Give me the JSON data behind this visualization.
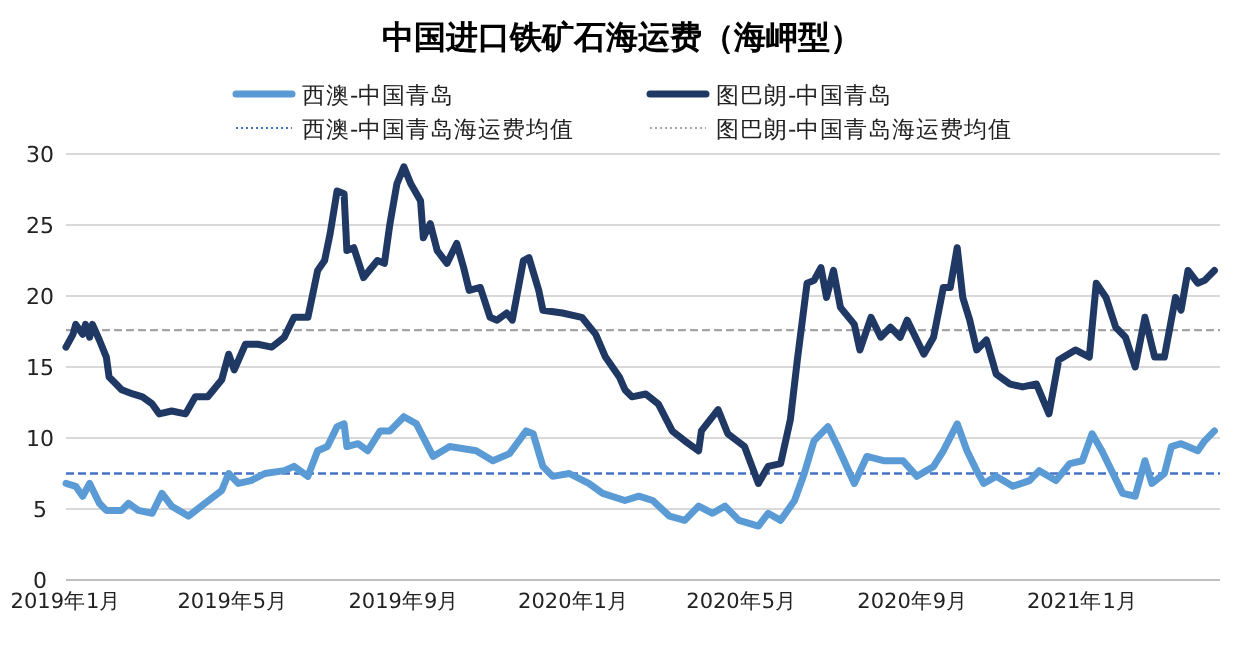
{
  "chart_data": {
    "type": "line",
    "title": "中国进口铁矿石海运费（海岬型）",
    "legend": "top",
    "grid": "y",
    "line_style": "solid",
    "marker": "none",
    "xlim": [
      "2019-01-01",
      "2021-04-10"
    ],
    "xticks": [
      {
        "value": "2019-01-01",
        "label": "2019年1月"
      },
      {
        "value": "2019-05-01",
        "label": "2019年5月"
      },
      {
        "value": "2019-09-01",
        "label": "2019年9月"
      },
      {
        "value": "2020-01-01",
        "label": "2020年1月"
      },
      {
        "value": "2020-05-01",
        "label": "2020年5月"
      },
      {
        "value": "2020-09-01",
        "label": "2020年9月"
      },
      {
        "value": "2021-01-01",
        "label": "2021年1月"
      }
    ],
    "ylim": [
      0,
      30
    ],
    "yticks": [
      0,
      5,
      10,
      15,
      20,
      25,
      30
    ],
    "series": [
      {
        "name": "西澳-中国青岛",
        "color": "#5b9bd5",
        "x": [
          "2019-01-01",
          "2019-01-08",
          "2019-01-13",
          "2019-01-18",
          "2019-01-25",
          "2019-01-30",
          "2019-02-10",
          "2019-02-15",
          "2019-02-22",
          "2019-03-04",
          "2019-03-11",
          "2019-03-18",
          "2019-03-30",
          "2019-04-11",
          "2019-04-23",
          "2019-04-28",
          "2019-05-05",
          "2019-05-14",
          "2019-05-24",
          "2019-06-07",
          "2019-06-14",
          "2019-06-24",
          "2019-07-01",
          "2019-07-08",
          "2019-07-15",
          "2019-07-20",
          "2019-07-22",
          "2019-07-30",
          "2019-08-06",
          "2019-08-15",
          "2019-08-22",
          "2019-09-01",
          "2019-09-10",
          "2019-09-22",
          "2019-10-04",
          "2019-10-23",
          "2019-11-04",
          "2019-11-16",
          "2019-11-28",
          "2019-12-03",
          "2019-12-10",
          "2019-12-17",
          "2019-12-29",
          "2020-01-12",
          "2020-01-22",
          "2020-02-07",
          "2020-02-17",
          "2020-02-27",
          "2020-03-10",
          "2020-03-21",
          "2020-03-31",
          "2020-04-10",
          "2020-04-19",
          "2020-04-29",
          "2020-05-13",
          "2020-05-20",
          "2020-05-29",
          "2020-06-08",
          "2020-06-15",
          "2020-06-22",
          "2020-07-02",
          "2020-07-09",
          "2020-07-21",
          "2020-07-30",
          "2020-08-11",
          "2020-08-25",
          "2020-09-04",
          "2020-09-16",
          "2020-09-23",
          "2020-10-03",
          "2020-10-10",
          "2020-10-17",
          "2020-10-22",
          "2020-10-31",
          "2020-11-12",
          "2020-11-24",
          "2020-12-01",
          "2020-12-13",
          "2020-12-23",
          "2021-01-01",
          "2021-01-08",
          "2021-01-15",
          "2021-01-22",
          "2021-01-30",
          "2021-02-08",
          "2021-02-15",
          "2021-02-20",
          "2021-03-01",
          "2021-03-06",
          "2021-03-13",
          "2021-03-25",
          "2021-03-30",
          "2021-04-06"
        ],
        "values": [
          6.8,
          6.6,
          5.9,
          6.8,
          5.4,
          4.9,
          4.9,
          5.4,
          4.9,
          4.7,
          6.1,
          5.2,
          4.5,
          5.4,
          6.3,
          7.5,
          6.8,
          7.0,
          7.5,
          7.7,
          8.0,
          7.3,
          9.1,
          9.4,
          10.8,
          11.0,
          9.4,
          9.6,
          9.1,
          10.5,
          10.5,
          11.5,
          11.0,
          8.7,
          9.4,
          9.1,
          8.4,
          8.9,
          10.5,
          10.3,
          8.0,
          7.3,
          7.5,
          6.8,
          6.1,
          5.6,
          5.9,
          5.6,
          4.5,
          4.2,
          5.2,
          4.7,
          5.2,
          4.2,
          3.8,
          4.7,
          4.2,
          5.6,
          7.5,
          9.8,
          10.8,
          9.4,
          6.8,
          8.7,
          8.4,
          8.4,
          7.3,
          8.0,
          9.1,
          11.0,
          9.1,
          7.7,
          6.8,
          7.3,
          6.6,
          7.0,
          7.7,
          7.0,
          8.2,
          8.4,
          10.3,
          9.1,
          7.7,
          6.1,
          5.9,
          8.4,
          6.8,
          7.5,
          9.4,
          9.6,
          9.1,
          9.8,
          10.5
        ]
      },
      {
        "name": "图巴朗-中国青岛",
        "color": "#203864",
        "x": [
          "2019-01-01",
          "2019-01-06",
          "2019-01-08",
          "2019-01-13",
          "2019-01-15",
          "2019-01-18",
          "2019-01-20",
          "2019-01-25",
          "2019-01-30",
          "2019-02-01",
          "2019-02-06",
          "2019-02-10",
          "2019-02-18",
          "2019-02-25",
          "2019-03-04",
          "2019-03-09",
          "2019-03-18",
          "2019-03-28",
          "2019-04-04",
          "2019-04-13",
          "2019-04-23",
          "2019-04-28",
          "2019-05-02",
          "2019-05-10",
          "2019-05-19",
          "2019-05-29",
          "2019-06-07",
          "2019-06-14",
          "2019-06-24",
          "2019-07-01",
          "2019-07-06",
          "2019-07-10",
          "2019-07-15",
          "2019-07-20",
          "2019-07-22",
          "2019-07-27",
          "2019-08-03",
          "2019-08-13",
          "2019-08-18",
          "2019-08-22",
          "2019-08-27",
          "2019-09-01",
          "2019-09-06",
          "2019-09-13",
          "2019-09-15",
          "2019-09-20",
          "2019-09-25",
          "2019-10-02",
          "2019-10-09",
          "2019-10-14",
          "2019-10-18",
          "2019-10-26",
          "2019-11-02",
          "2019-11-07",
          "2019-11-14",
          "2019-11-18",
          "2019-11-26",
          "2019-11-30",
          "2019-12-07",
          "2019-12-10",
          "2019-12-24",
          "2020-01-07",
          "2020-01-17",
          "2020-01-24",
          "2020-02-03",
          "2020-02-07",
          "2020-02-12",
          "2020-02-22",
          "2020-03-02",
          "2020-03-12",
          "2020-03-21",
          "2020-03-31",
          "2020-04-02",
          "2020-04-14",
          "2020-04-21",
          "2020-05-03",
          "2020-05-13",
          "2020-05-20",
          "2020-05-29",
          "2020-06-05",
          "2020-06-10",
          "2020-06-17",
          "2020-06-22",
          "2020-06-27",
          "2020-07-01",
          "2020-07-06",
          "2020-07-11",
          "2020-07-21",
          "2020-07-25",
          "2020-08-02",
          "2020-08-09",
          "2020-08-16",
          "2020-08-23",
          "2020-08-28",
          "2020-09-09",
          "2020-09-16",
          "2020-09-23",
          "2020-09-28",
          "2020-10-03",
          "2020-10-07",
          "2020-10-12",
          "2020-10-17",
          "2020-10-24",
          "2020-10-31",
          "2020-11-10",
          "2020-11-19",
          "2020-11-29",
          "2020-12-08",
          "2020-12-15",
          "2020-12-27",
          "2021-01-06",
          "2021-01-11",
          "2021-01-18",
          "2021-01-25",
          "2021-02-01",
          "2021-02-08",
          "2021-02-15",
          "2021-02-22",
          "2021-03-01",
          "2021-03-09",
          "2021-03-13",
          "2021-03-18",
          "2021-03-25",
          "2021-03-30",
          "2021-04-06"
        ],
        "values": [
          16.4,
          17.3,
          18.0,
          17.3,
          18.0,
          17.1,
          18.0,
          16.9,
          15.7,
          14.3,
          13.8,
          13.4,
          13.1,
          12.9,
          12.4,
          11.7,
          11.9,
          11.7,
          12.9,
          12.9,
          14.1,
          15.9,
          14.8,
          16.6,
          16.6,
          16.4,
          17.1,
          18.5,
          18.5,
          21.8,
          22.5,
          24.4,
          27.4,
          27.2,
          23.2,
          23.4,
          21.3,
          22.5,
          22.3,
          25.1,
          27.9,
          29.1,
          27.9,
          26.7,
          24.1,
          25.1,
          23.2,
          22.3,
          23.7,
          22.0,
          20.4,
          20.6,
          18.5,
          18.3,
          18.8,
          18.3,
          22.5,
          22.7,
          20.4,
          19.0,
          18.8,
          18.5,
          17.3,
          15.7,
          14.3,
          13.4,
          12.9,
          13.1,
          12.4,
          10.5,
          9.8,
          9.1,
          10.5,
          12.0,
          10.3,
          9.4,
          6.8,
          8.0,
          8.2,
          11.3,
          15.5,
          20.9,
          21.1,
          22.0,
          19.9,
          21.8,
          19.2,
          18.0,
          16.2,
          18.5,
          17.1,
          17.8,
          17.1,
          18.3,
          15.9,
          17.1,
          20.6,
          20.6,
          23.4,
          19.9,
          18.3,
          16.2,
          16.9,
          14.5,
          13.8,
          13.6,
          13.8,
          11.7,
          15.5,
          16.2,
          15.7,
          20.9,
          19.9,
          17.8,
          17.1,
          15.0,
          18.5,
          15.7,
          15.7,
          19.9,
          19.0,
          21.8,
          20.9,
          21.1,
          21.8
        ]
      }
    ],
    "ref_lines": [
      {
        "axis": "y",
        "value": 7.5,
        "label": "西澳-中国青岛海运费均值",
        "color": "#4472c4",
        "line_style": "dashed"
      },
      {
        "axis": "y",
        "value": 17.6,
        "label": "图巴朗-中国青岛海运费均值",
        "color": "#a5a5a5",
        "line_style": "dashed"
      }
    ]
  }
}
